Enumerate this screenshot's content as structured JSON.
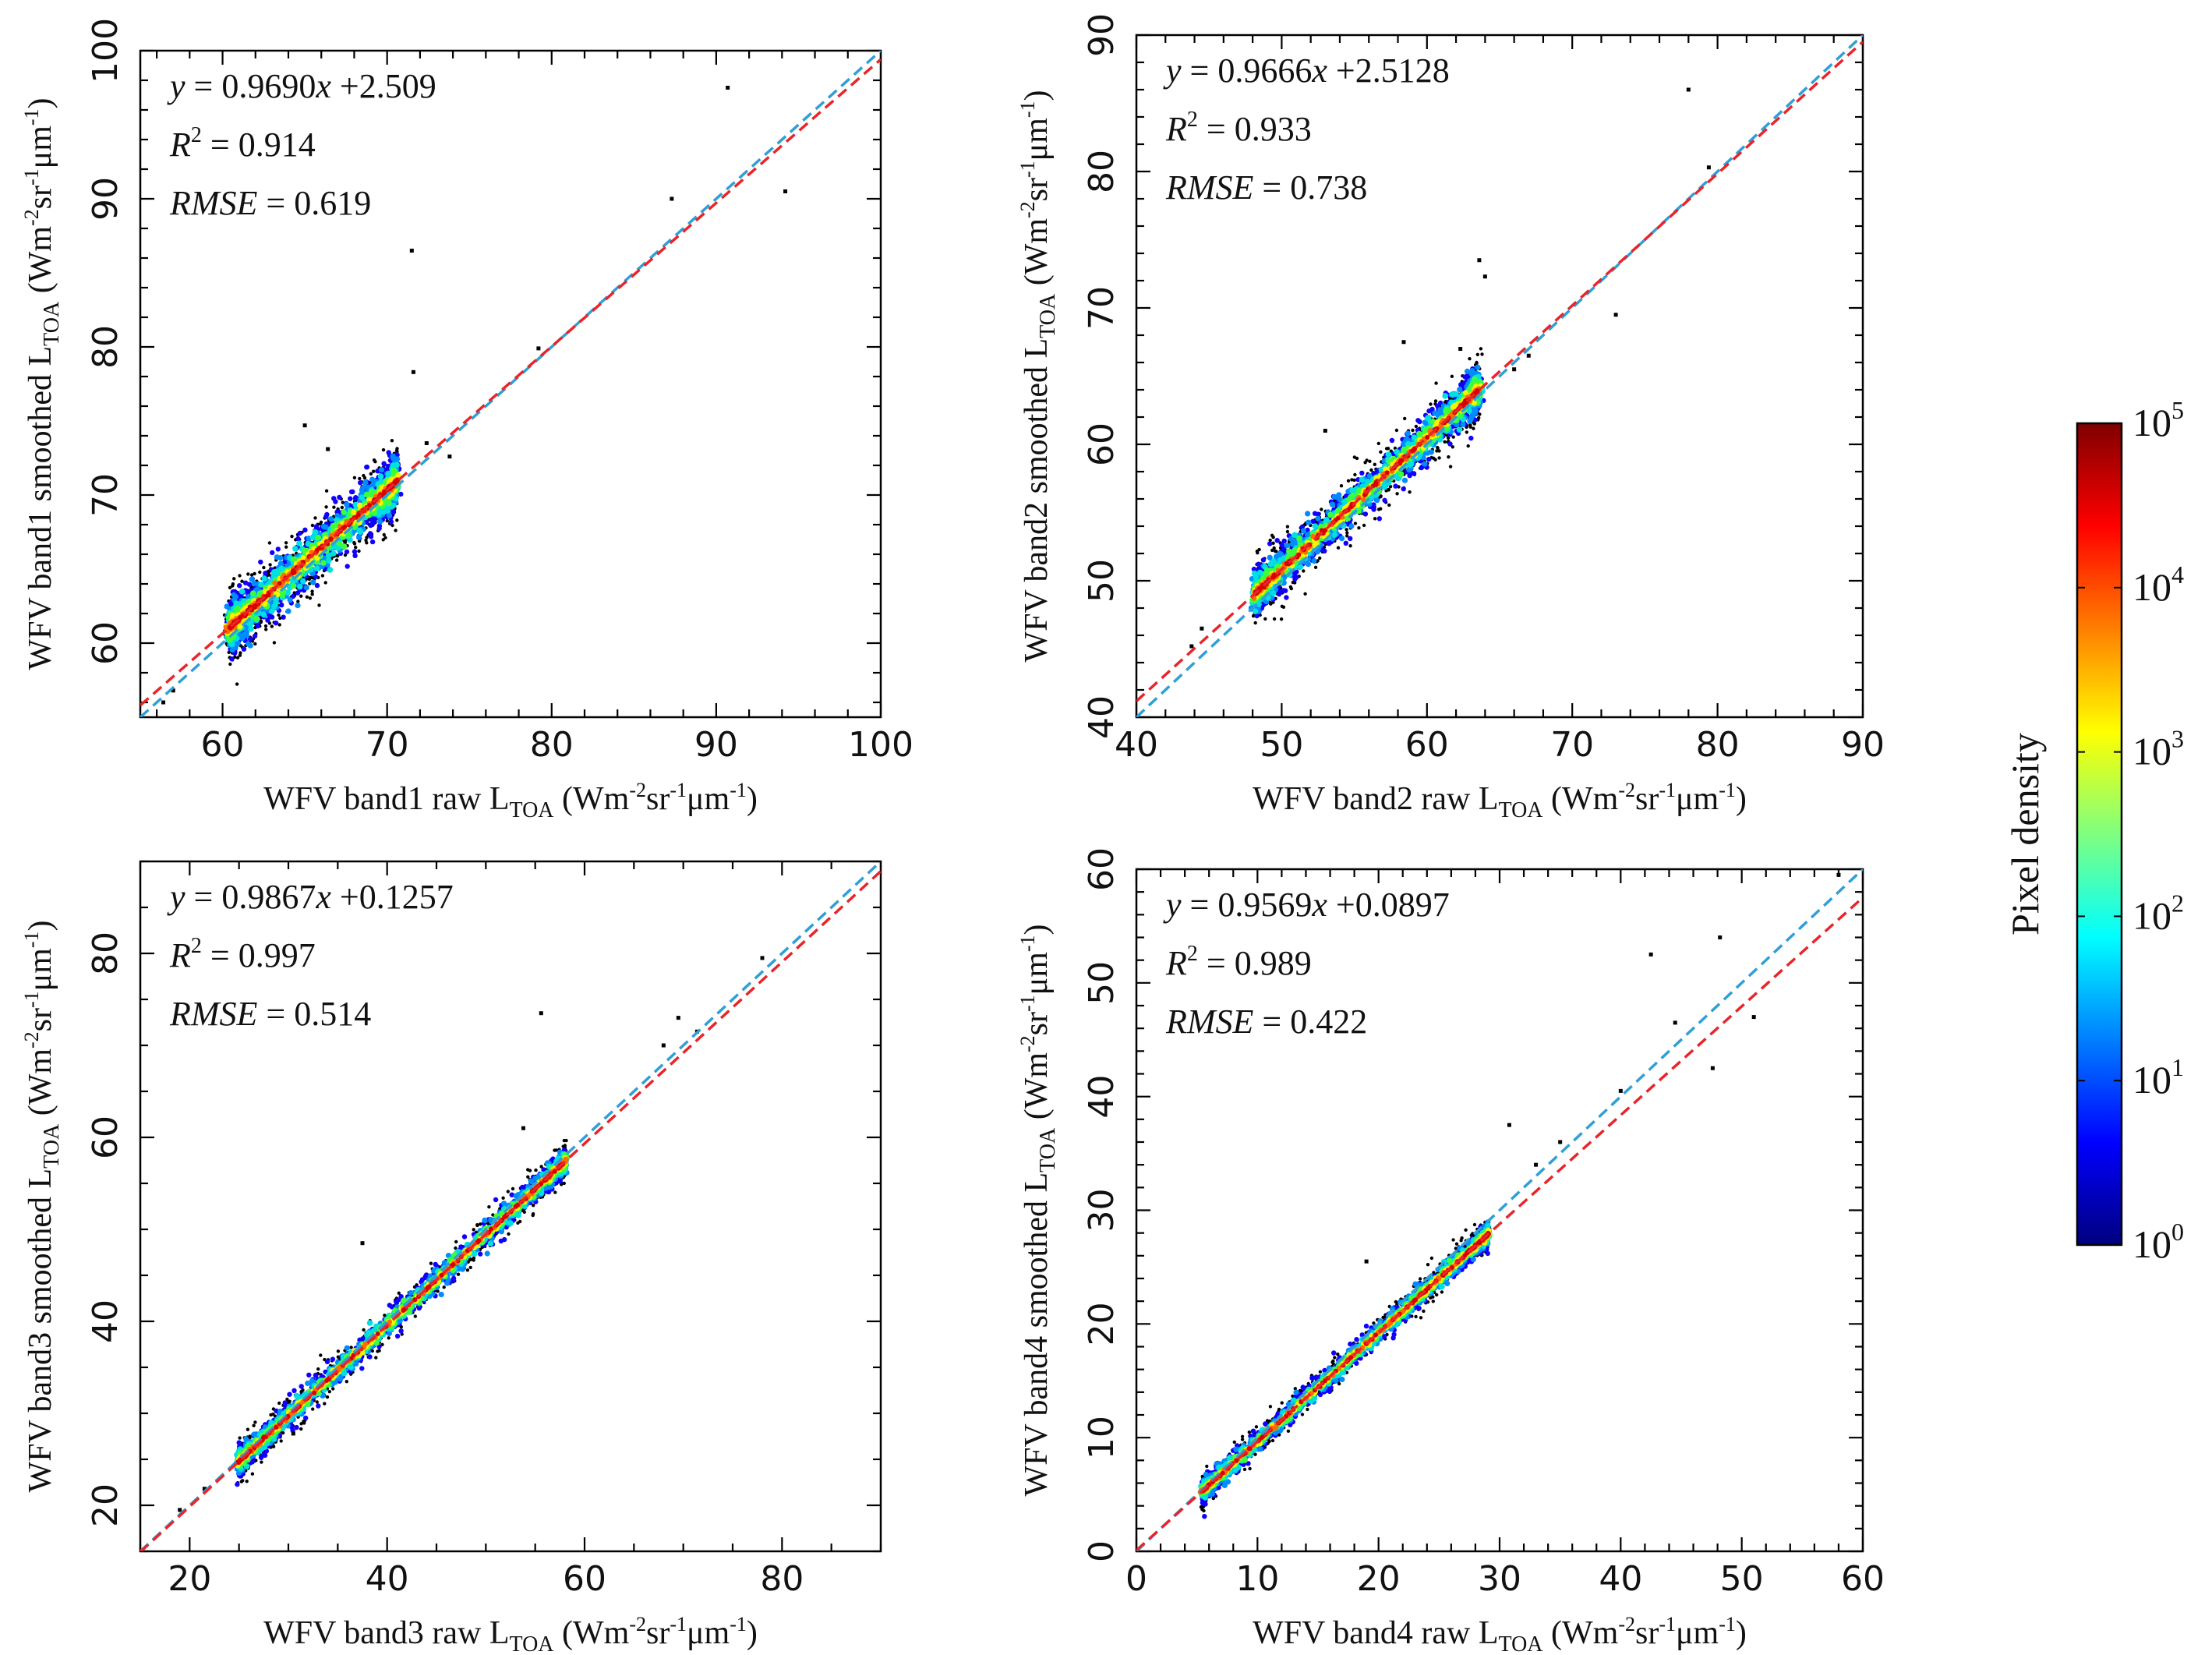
{
  "panels": [
    {
      "id": "band1",
      "xlim": [
        55,
        100
      ],
      "ylim": [
        55,
        100
      ],
      "xticks": [
        60,
        70,
        80,
        90,
        100
      ],
      "yticks": [
        60,
        70,
        80,
        90,
        100
      ],
      "minor_step": 2,
      "xlabel_main": "WFV band1 raw L",
      "ylabel_main": "WFV band1 smoothed L",
      "label_sub": "TOA",
      "unit_prefix": "(Wm",
      "unit_exp1": "-2",
      "unit_mid": "sr",
      "unit_exp2": "-1",
      "unit_mu": "μm",
      "unit_exp3": "-1",
      "unit_close": ")",
      "equation": {
        "lhs": "y",
        "eq": " = 0.9690",
        "x": "x",
        "rest": " +2.509"
      },
      "r2": {
        "sym": "R",
        "exp": "2",
        "value": " = 0.914"
      },
      "rmse": {
        "sym": "RMSE",
        "value": " = 0.619"
      },
      "fit": {
        "slope": 0.969,
        "intercept": 2.509
      },
      "cluster": {
        "x0": 60.5,
        "x1": 70.5,
        "width": 1.1
      },
      "outliers": [
        [
          90.7,
          97.5
        ],
        [
          71.5,
          86.5
        ],
        [
          87.3,
          90.0
        ],
        [
          94.2,
          90.5
        ],
        [
          71.6,
          78.3
        ],
        [
          72.4,
          73.5
        ],
        [
          65.0,
          74.7
        ],
        [
          66.4,
          73.1
        ],
        [
          73.8,
          72.6
        ],
        [
          79.2,
          79.9
        ],
        [
          57.0,
          56.8
        ],
        [
          56.4,
          56.0
        ]
      ]
    },
    {
      "id": "band2",
      "xlim": [
        40,
        90
      ],
      "ylim": [
        40,
        90
      ],
      "xticks": [
        40,
        50,
        60,
        70,
        80,
        90
      ],
      "yticks": [
        40,
        50,
        60,
        70,
        80,
        90
      ],
      "minor_step": 2,
      "xlabel_main": "WFV band2 raw L",
      "ylabel_main": "WFV band2 smoothed L",
      "label_sub": "TOA",
      "unit_prefix": "(Wm",
      "unit_exp1": "-2",
      "unit_mid": "sr",
      "unit_exp2": "-1",
      "unit_mu": "μm",
      "unit_exp3": "-1",
      "unit_close": ")",
      "equation": {
        "lhs": "y",
        "eq": " = 0.9666",
        "x": "x",
        "rest": " +2.5128"
      },
      "r2": {
        "sym": "R",
        "exp": "2",
        "value": " = 0.933"
      },
      "rmse": {
        "sym": "RMSE",
        "value": " = 0.738"
      },
      "fit": {
        "slope": 0.9666,
        "intercept": 2.5128
      },
      "cluster": {
        "x0": 48.2,
        "x1": 63.5,
        "width": 1.0
      },
      "outliers": [
        [
          78.0,
          86.0
        ],
        [
          63.6,
          73.5
        ],
        [
          64.0,
          72.3
        ],
        [
          62.3,
          67.0
        ],
        [
          73.0,
          69.5
        ],
        [
          58.4,
          67.5
        ],
        [
          53.0,
          61.0
        ],
        [
          44.5,
          46.5
        ],
        [
          43.8,
          45.2
        ],
        [
          79.4,
          80.3
        ],
        [
          66.0,
          65.5
        ],
        [
          67.0,
          66.5
        ]
      ]
    },
    {
      "id": "band3",
      "xlim": [
        15,
        90
      ],
      "ylim": [
        15,
        90
      ],
      "xticks": [
        20,
        40,
        60,
        80
      ],
      "yticks": [
        20,
        40,
        60,
        80
      ],
      "minor_step": 5,
      "xlabel_main": "WFV band3 raw L",
      "ylabel_main": "WFV band3 smoothed L",
      "label_sub": "TOA",
      "unit_prefix": "(Wm",
      "unit_exp1": "-2",
      "unit_mid": "sr",
      "unit_exp2": "-1",
      "unit_mu": "μm",
      "unit_exp3": "-1",
      "unit_close": ")",
      "equation": {
        "lhs": "y",
        "eq": " = 0.9867",
        "x": "x",
        "rest": " +0.1257"
      },
      "r2": {
        "sym": "R",
        "exp": "2",
        "value": " = 0.997"
      },
      "rmse": {
        "sym": "RMSE",
        "value": " = 0.514"
      },
      "fit": {
        "slope": 0.9867,
        "intercept": 0.1257
      },
      "cluster": {
        "x0": 25.0,
        "x1": 58.0,
        "width": 0.9
      },
      "outliers": [
        [
          55.6,
          73.5
        ],
        [
          69.5,
          73.0
        ],
        [
          71.4,
          71.5
        ],
        [
          68.0,
          70.0
        ],
        [
          53.8,
          61.0
        ],
        [
          37.5,
          48.5
        ],
        [
          30.5,
          27.8
        ],
        [
          21.5,
          21.8
        ],
        [
          19.0,
          19.5
        ],
        [
          78.0,
          79.5
        ]
      ]
    },
    {
      "id": "band4",
      "xlim": [
        0,
        60
      ],
      "ylim": [
        0,
        60
      ],
      "xticks": [
        0,
        10,
        20,
        30,
        40,
        50,
        60
      ],
      "yticks": [
        0,
        10,
        20,
        30,
        40,
        50,
        60
      ],
      "minor_step": 2,
      "xlabel_main": "WFV band4 raw L",
      "ylabel_main": "WFV band4 smoothed L",
      "label_sub": "TOA",
      "unit_prefix": "(Wm",
      "unit_exp1": "-2",
      "unit_mid": "sr",
      "unit_exp2": "-1",
      "unit_mu": "μm",
      "unit_exp3": "-1",
      "unit_close": ")",
      "equation": {
        "lhs": "y",
        "eq": " = 0.9569",
        "x": "x",
        "rest": " +0.0897"
      },
      "r2": {
        "sym": "R",
        "exp": "2",
        "value": " = 0.989"
      },
      "rmse": {
        "sym": "RMSE",
        "value": " = 0.422"
      },
      "fit": {
        "slope": 0.9569,
        "intercept": 0.0897
      },
      "cluster": {
        "x0": 5.5,
        "x1": 29.0,
        "width": 0.6
      },
      "outliers": [
        [
          42.5,
          52.5
        ],
        [
          48.2,
          54.0
        ],
        [
          47.6,
          42.5
        ],
        [
          44.5,
          46.5
        ],
        [
          51.0,
          47.0
        ],
        [
          30.8,
          37.5
        ],
        [
          33.0,
          34.0
        ],
        [
          35.0,
          36.0
        ],
        [
          58.0,
          59.5
        ],
        [
          40.0,
          40.5
        ],
        [
          19.0,
          25.5
        ]
      ]
    }
  ],
  "colorbar": {
    "title": "Pixel density",
    "base": "10",
    "exponents": [
      "5",
      "4",
      "3",
      "2",
      "1",
      "0"
    ],
    "colors": [
      "#00007f",
      "#0000ff",
      "#007fff",
      "#00ffff",
      "#7fff7f",
      "#ffff00",
      "#ff7f00",
      "#ff0000",
      "#7f0000"
    ]
  },
  "line_colors": {
    "one_to_one": "#2f9fd6",
    "fit": "#e8252a"
  },
  "chart_data": [
    {
      "type": "scatter",
      "title": "",
      "xlabel": "WFV band1 raw L_TOA (Wm-2sr-1μm-1)",
      "ylabel": "WFV band1 smoothed L_TOA (Wm-2sr-1μm-1)",
      "xlim": [
        55,
        100
      ],
      "ylim": [
        55,
        100
      ],
      "fit": {
        "slope": 0.969,
        "intercept": 2.509,
        "r2": 0.914,
        "rmse": 0.619
      },
      "density_range_x": [
        60.5,
        70.5
      ]
    },
    {
      "type": "scatter",
      "title": "",
      "xlabel": "WFV band2 raw L_TOA (Wm-2sr-1μm-1)",
      "ylabel": "WFV band2 smoothed L_TOA (Wm-2sr-1μm-1)",
      "xlim": [
        40,
        90
      ],
      "ylim": [
        40,
        90
      ],
      "fit": {
        "slope": 0.9666,
        "intercept": 2.5128,
        "r2": 0.933,
        "rmse": 0.738
      },
      "density_range_x": [
        48.2,
        63.5
      ]
    },
    {
      "type": "scatter",
      "title": "",
      "xlabel": "WFV band3 raw L_TOA (Wm-2sr-1μm-1)",
      "ylabel": "WFV band3 smoothed L_TOA (Wm-2sr-1μm-1)",
      "xlim": [
        15,
        90
      ],
      "ylim": [
        15,
        90
      ],
      "fit": {
        "slope": 0.9867,
        "intercept": 0.1257,
        "r2": 0.997,
        "rmse": 0.514
      },
      "density_range_x": [
        25.0,
        58.0
      ]
    },
    {
      "type": "scatter",
      "title": "",
      "xlabel": "WFV band4 raw L_TOA (Wm-2sr-1μm-1)",
      "ylabel": "WFV band4 smoothed L_TOA (Wm-2sr-1μm-1)",
      "xlim": [
        0,
        60
      ],
      "ylim": [
        0,
        60
      ],
      "fit": {
        "slope": 0.9569,
        "intercept": 0.0897,
        "r2": 0.989,
        "rmse": 0.422
      },
      "density_range_x": [
        5.5,
        29.0
      ]
    }
  ]
}
